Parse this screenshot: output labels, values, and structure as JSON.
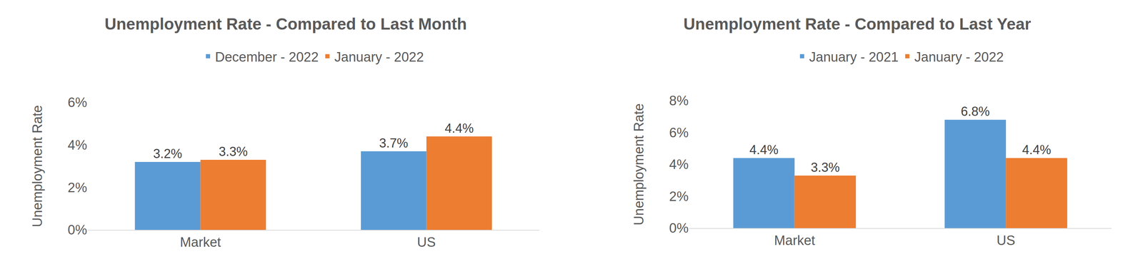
{
  "chart_data": [
    {
      "type": "bar",
      "title": "Unemployment Rate - Compared to Last Month",
      "y_label": "Unemployment Rate",
      "categories": [
        "Market",
        "US"
      ],
      "series": [
        {
          "name": "December - 2022",
          "color": "#5b9bd5",
          "values": [
            3.2,
            3.7
          ],
          "value_labels": [
            "3.2%",
            "3.7%"
          ]
        },
        {
          "name": "January - 2022",
          "color": "#ed7d31",
          "values": [
            3.3,
            4.4
          ],
          "value_labels": [
            "3.3%",
            "4.4%"
          ]
        }
      ],
      "ylim": [
        0,
        6
      ],
      "yticks": [
        {
          "value": 0,
          "label": "0%"
        },
        {
          "value": 2,
          "label": "2%"
        },
        {
          "value": 4,
          "label": "4%"
        },
        {
          "value": 6,
          "label": "6%"
        }
      ],
      "grid": false,
      "legend": "top",
      "data_labels": true
    },
    {
      "type": "bar",
      "title": "Unemployment Rate - Compared to Last Year",
      "y_label": "Unemployment Rate",
      "categories": [
        "Market",
        "US"
      ],
      "series": [
        {
          "name": "January - 2021",
          "color": "#5b9bd5",
          "values": [
            4.4,
            6.8
          ],
          "value_labels": [
            "4.4%",
            "6.8%"
          ]
        },
        {
          "name": "January - 2022",
          "color": "#ed7d31",
          "values": [
            3.3,
            4.4
          ],
          "value_labels": [
            "3.3%",
            "4.4%"
          ]
        }
      ],
      "ylim": [
        0,
        8
      ],
      "yticks": [
        {
          "value": 0,
          "label": "0%"
        },
        {
          "value": 2,
          "label": "2%"
        },
        {
          "value": 4,
          "label": "4%"
        },
        {
          "value": 6,
          "label": "6%"
        },
        {
          "value": 8,
          "label": "8%"
        }
      ],
      "grid": false,
      "legend": "top",
      "data_labels": true
    }
  ]
}
